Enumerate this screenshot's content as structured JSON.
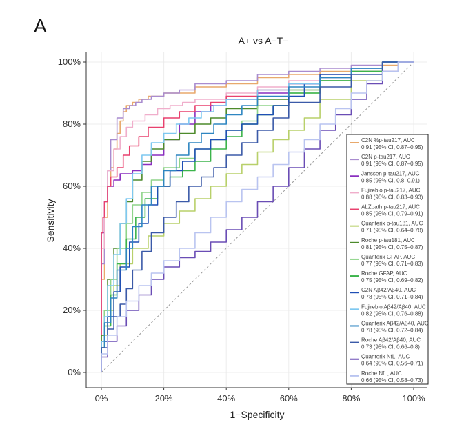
{
  "panel_label": "A",
  "chart_data": {
    "type": "line",
    "title": "A+ vs A−T−",
    "xlabel": "1−Specificity",
    "ylabel": "Sensitivity",
    "xlim": [
      0,
      1
    ],
    "ylim": [
      0,
      1
    ],
    "x_ticks": [
      0,
      0.2,
      0.4,
      0.6,
      0.8,
      1.0
    ],
    "x_tick_labels": [
      "0%",
      "20%",
      "40%",
      "60%",
      "80%",
      "100%"
    ],
    "y_ticks": [
      0,
      0.2,
      0.4,
      0.6,
      0.8,
      1.0
    ],
    "y_tick_labels": [
      "0%",
      "20%",
      "40%",
      "60%",
      "80%",
      "100%"
    ],
    "grid": true,
    "reference_line": true,
    "legend_position": "right",
    "series": [
      {
        "name": "C2N %p-tau217",
        "auc_label": "C2N %p-tau217, AUC",
        "ci_label": "0.91 (95% CI, 0.87–0.95)",
        "color": "#e8a96c",
        "x": [
          0,
          0.01,
          0.02,
          0.03,
          0.04,
          0.05,
          0.06,
          0.07,
          0.08,
          0.1,
          0.12,
          0.15,
          0.2,
          0.3,
          0.4,
          0.5,
          0.6,
          0.7,
          0.8,
          0.9,
          0.95,
          1.0
        ],
        "y": [
          0,
          0.3,
          0.5,
          0.6,
          0.66,
          0.72,
          0.77,
          0.81,
          0.84,
          0.86,
          0.87,
          0.88,
          0.89,
          0.9,
          0.92,
          0.93,
          0.95,
          0.96,
          0.97,
          0.98,
          0.99,
          1.0
        ]
      },
      {
        "name": "C2N p-tau217",
        "auc_label": "C2N p-tau217, AUC",
        "ci_label": "0.91 (95% CI, 0.87–0.95)",
        "color": "#a98ccf",
        "x": [
          0,
          0.01,
          0.02,
          0.03,
          0.05,
          0.07,
          0.09,
          0.11,
          0.13,
          0.16,
          0.2,
          0.25,
          0.3,
          0.4,
          0.5,
          0.6,
          0.7,
          0.8,
          0.9,
          1.0
        ],
        "y": [
          0,
          0.35,
          0.55,
          0.65,
          0.75,
          0.82,
          0.85,
          0.86,
          0.87,
          0.88,
          0.89,
          0.9,
          0.91,
          0.93,
          0.94,
          0.96,
          0.97,
          0.98,
          0.99,
          1.0
        ]
      },
      {
        "name": "Janssen p-tau217",
        "auc_label": "Janssen p-tau217, AUC",
        "ci_label": "0.85 (95% CI, 0.8–0.91)",
        "color": "#8a2fbf",
        "x": [
          0,
          0.01,
          0.02,
          0.04,
          0.06,
          0.1,
          0.13,
          0.16,
          0.2,
          0.25,
          0.3,
          0.35,
          0.4,
          0.5,
          0.6,
          0.7,
          0.8,
          0.9,
          1.0
        ],
        "y": [
          0,
          0.45,
          0.55,
          0.6,
          0.62,
          0.64,
          0.65,
          0.67,
          0.7,
          0.75,
          0.8,
          0.84,
          0.86,
          0.88,
          0.9,
          0.93,
          0.95,
          0.97,
          1.0
        ]
      },
      {
        "name": "Fujirebio p-tau217",
        "auc_label": "Fujirebio p-tau217, AUC",
        "ci_label": "0.88 (95% CI, 0.83–0.93)",
        "color": "#f0aecb",
        "x": [
          0,
          0.01,
          0.02,
          0.04,
          0.06,
          0.08,
          0.1,
          0.14,
          0.18,
          0.22,
          0.26,
          0.3,
          0.4,
          0.5,
          0.6,
          0.7,
          0.8,
          0.9,
          1.0
        ],
        "y": [
          0,
          0.4,
          0.55,
          0.65,
          0.72,
          0.76,
          0.79,
          0.81,
          0.83,
          0.85,
          0.86,
          0.87,
          0.88,
          0.9,
          0.92,
          0.94,
          0.96,
          0.98,
          1.0
        ]
      },
      {
        "name": "ALZpath p-tau217",
        "auc_label": "ALZpath p-tau217, AUC",
        "ci_label": "0.85 (95% CI, 0.79–0.91)",
        "color": "#e8416e",
        "x": [
          0,
          0.005,
          0.01,
          0.02,
          0.03,
          0.05,
          0.07,
          0.09,
          0.12,
          0.15,
          0.2,
          0.25,
          0.3,
          0.35,
          0.4,
          0.5,
          0.6,
          0.7,
          0.8,
          0.9,
          1.0
        ],
        "y": [
          0,
          0.45,
          0.5,
          0.55,
          0.6,
          0.63,
          0.66,
          0.7,
          0.73,
          0.76,
          0.79,
          0.82,
          0.84,
          0.86,
          0.87,
          0.89,
          0.91,
          0.93,
          0.95,
          0.97,
          1.0
        ]
      },
      {
        "name": "Quanterix p-tau181",
        "auc_label": "Quanterix p-tau181, AUC",
        "ci_label": "0.71 (95% CI, 0.64–0.78)",
        "color": "#b8d06a",
        "x": [
          0,
          0.02,
          0.04,
          0.06,
          0.1,
          0.15,
          0.2,
          0.25,
          0.3,
          0.35,
          0.4,
          0.45,
          0.5,
          0.55,
          0.6,
          0.65,
          0.7,
          0.8,
          0.9,
          1.0
        ],
        "y": [
          0,
          0.12,
          0.2,
          0.28,
          0.35,
          0.4,
          0.44,
          0.48,
          0.52,
          0.56,
          0.6,
          0.64,
          0.67,
          0.71,
          0.75,
          0.78,
          0.82,
          0.88,
          0.94,
          1.0
        ]
      },
      {
        "name": "Roche p-tau181",
        "auc_label": "Roche p-tau181, AUC",
        "ci_label": "0.81 (95% CI, 0.75–0.87)",
        "color": "#4d8a2b",
        "x": [
          0,
          0.01,
          0.02,
          0.04,
          0.06,
          0.08,
          0.1,
          0.13,
          0.16,
          0.2,
          0.25,
          0.3,
          0.35,
          0.4,
          0.5,
          0.6,
          0.7,
          0.8,
          0.9,
          1.0
        ],
        "y": [
          0,
          0.12,
          0.2,
          0.3,
          0.4,
          0.48,
          0.55,
          0.62,
          0.68,
          0.72,
          0.75,
          0.77,
          0.8,
          0.82,
          0.85,
          0.88,
          0.91,
          0.94,
          0.97,
          1.0
        ]
      },
      {
        "name": "Quanterix GFAP",
        "auc_label": "Quanterix GFAP, AUC",
        "ci_label": "0.77 (95% CI, 0.71–0.83)",
        "color": "#8fd48a",
        "x": [
          0,
          0.01,
          0.03,
          0.05,
          0.08,
          0.1,
          0.13,
          0.16,
          0.2,
          0.25,
          0.3,
          0.35,
          0.4,
          0.45,
          0.5,
          0.6,
          0.7,
          0.8,
          0.9,
          1.0
        ],
        "y": [
          0,
          0.1,
          0.2,
          0.3,
          0.4,
          0.48,
          0.54,
          0.58,
          0.62,
          0.66,
          0.69,
          0.72,
          0.75,
          0.78,
          0.81,
          0.86,
          0.9,
          0.94,
          0.97,
          1.0
        ]
      },
      {
        "name": "Roche GFAP",
        "auc_label": "Roche GFAP, AUC",
        "ci_label": "0.75 (95% CI, 0.69–0.82)",
        "color": "#3cb44b",
        "x": [
          0,
          0.01,
          0.03,
          0.05,
          0.08,
          0.11,
          0.14,
          0.18,
          0.22,
          0.26,
          0.3,
          0.35,
          0.4,
          0.45,
          0.5,
          0.55,
          0.6,
          0.7,
          0.8,
          0.9,
          1.0
        ],
        "y": [
          0,
          0.08,
          0.15,
          0.25,
          0.35,
          0.43,
          0.5,
          0.56,
          0.6,
          0.63,
          0.65,
          0.68,
          0.72,
          0.76,
          0.8,
          0.83,
          0.86,
          0.9,
          0.94,
          0.97,
          1.0
        ]
      },
      {
        "name": "C2N Aβ42/Aβ40",
        "auc_label": "C2N Aβ42/Aβ40, AUC",
        "ci_label": "0.78 (95% CI, 0.71–0.84)",
        "color": "#1f4fb5",
        "x": [
          0,
          0.02,
          0.04,
          0.06,
          0.09,
          0.12,
          0.15,
          0.18,
          0.22,
          0.26,
          0.3,
          0.35,
          0.4,
          0.45,
          0.5,
          0.55,
          0.6,
          0.65,
          0.7,
          0.8,
          0.9,
          1.0
        ],
        "y": [
          0,
          0.1,
          0.18,
          0.26,
          0.34,
          0.42,
          0.48,
          0.54,
          0.6,
          0.65,
          0.68,
          0.72,
          0.75,
          0.78,
          0.8,
          0.83,
          0.86,
          0.89,
          0.93,
          0.96,
          0.98,
          1.0
        ]
      },
      {
        "name": "Fujirebio Aβ42/Aβ40",
        "auc_label": "Fujirebio Aβ42/Aβ40, AUC",
        "ci_label": "0.82 (95% CI, 0.76–0.88)",
        "color": "#7ec8f0",
        "x": [
          0,
          0.01,
          0.02,
          0.04,
          0.06,
          0.08,
          0.1,
          0.13,
          0.16,
          0.2,
          0.24,
          0.28,
          0.32,
          0.36,
          0.4,
          0.5,
          0.6,
          0.7,
          0.8,
          0.9,
          1.0
        ],
        "y": [
          0,
          0.1,
          0.18,
          0.28,
          0.38,
          0.48,
          0.56,
          0.64,
          0.7,
          0.74,
          0.77,
          0.8,
          0.82,
          0.84,
          0.86,
          0.88,
          0.91,
          0.93,
          0.95,
          0.98,
          1.0
        ]
      },
      {
        "name": "Quanterix Aβ42/Aβ40",
        "auc_label": "Quanterix Aβ42/Aβ40, AUC",
        "ci_label": "0.78 (95% CI, 0.72–0.84)",
        "color": "#2e86c1",
        "x": [
          0,
          0.01,
          0.03,
          0.05,
          0.08,
          0.1,
          0.13,
          0.16,
          0.2,
          0.24,
          0.28,
          0.32,
          0.36,
          0.4,
          0.45,
          0.5,
          0.6,
          0.7,
          0.8,
          0.9,
          1.0
        ],
        "y": [
          0,
          0.08,
          0.16,
          0.24,
          0.33,
          0.4,
          0.47,
          0.54,
          0.6,
          0.65,
          0.7,
          0.74,
          0.77,
          0.8,
          0.83,
          0.86,
          0.89,
          0.92,
          0.95,
          0.98,
          1.0
        ]
      },
      {
        "name": "Roche Aβ42/Aβ40",
        "auc_label": "Roche Aβ42/Aβ40, AUC",
        "ci_label": "0.73 (95% CI, 0.66–0.8)",
        "color": "#3b5aa8",
        "x": [
          0,
          0.02,
          0.04,
          0.06,
          0.08,
          0.1,
          0.13,
          0.16,
          0.2,
          0.24,
          0.28,
          0.32,
          0.36,
          0.4,
          0.45,
          0.5,
          0.55,
          0.6,
          0.7,
          0.8,
          0.9,
          1.0
        ],
        "y": [
          0,
          0.08,
          0.14,
          0.18,
          0.22,
          0.27,
          0.33,
          0.39,
          0.45,
          0.5,
          0.55,
          0.6,
          0.63,
          0.66,
          0.7,
          0.74,
          0.78,
          0.82,
          0.87,
          0.92,
          0.96,
          1.0
        ]
      },
      {
        "name": "Quanterix NfL",
        "auc_label": "Quanterix NfL, AUC",
        "ci_label": "0.64 (95% CI, 0.56–0.71)",
        "color": "#6a4db5",
        "x": [
          0,
          0.02,
          0.05,
          0.08,
          0.12,
          0.16,
          0.2,
          0.25,
          0.3,
          0.35,
          0.4,
          0.45,
          0.5,
          0.55,
          0.6,
          0.65,
          0.7,
          0.75,
          0.8,
          0.85,
          0.9,
          0.95,
          1.0
        ],
        "y": [
          0,
          0.05,
          0.1,
          0.15,
          0.2,
          0.25,
          0.3,
          0.34,
          0.37,
          0.39,
          0.42,
          0.46,
          0.5,
          0.55,
          0.6,
          0.66,
          0.72,
          0.78,
          0.83,
          0.88,
          0.93,
          0.97,
          1.0
        ]
      },
      {
        "name": "Roche NfL",
        "auc_label": "Roche NfL, AUC",
        "ci_label": "0.66 (95% CI, 0.58–0.73)",
        "color": "#b9c4f0",
        "x": [
          0,
          0.02,
          0.05,
          0.08,
          0.12,
          0.16,
          0.2,
          0.25,
          0.3,
          0.35,
          0.4,
          0.45,
          0.5,
          0.55,
          0.6,
          0.65,
          0.7,
          0.75,
          0.8,
          0.85,
          0.9,
          0.95,
          1.0
        ],
        "y": [
          0,
          0.06,
          0.12,
          0.18,
          0.23,
          0.28,
          0.32,
          0.36,
          0.4,
          0.45,
          0.5,
          0.55,
          0.59,
          0.63,
          0.67,
          0.71,
          0.75,
          0.8,
          0.85,
          0.9,
          0.94,
          0.97,
          1.0
        ]
      }
    ]
  }
}
